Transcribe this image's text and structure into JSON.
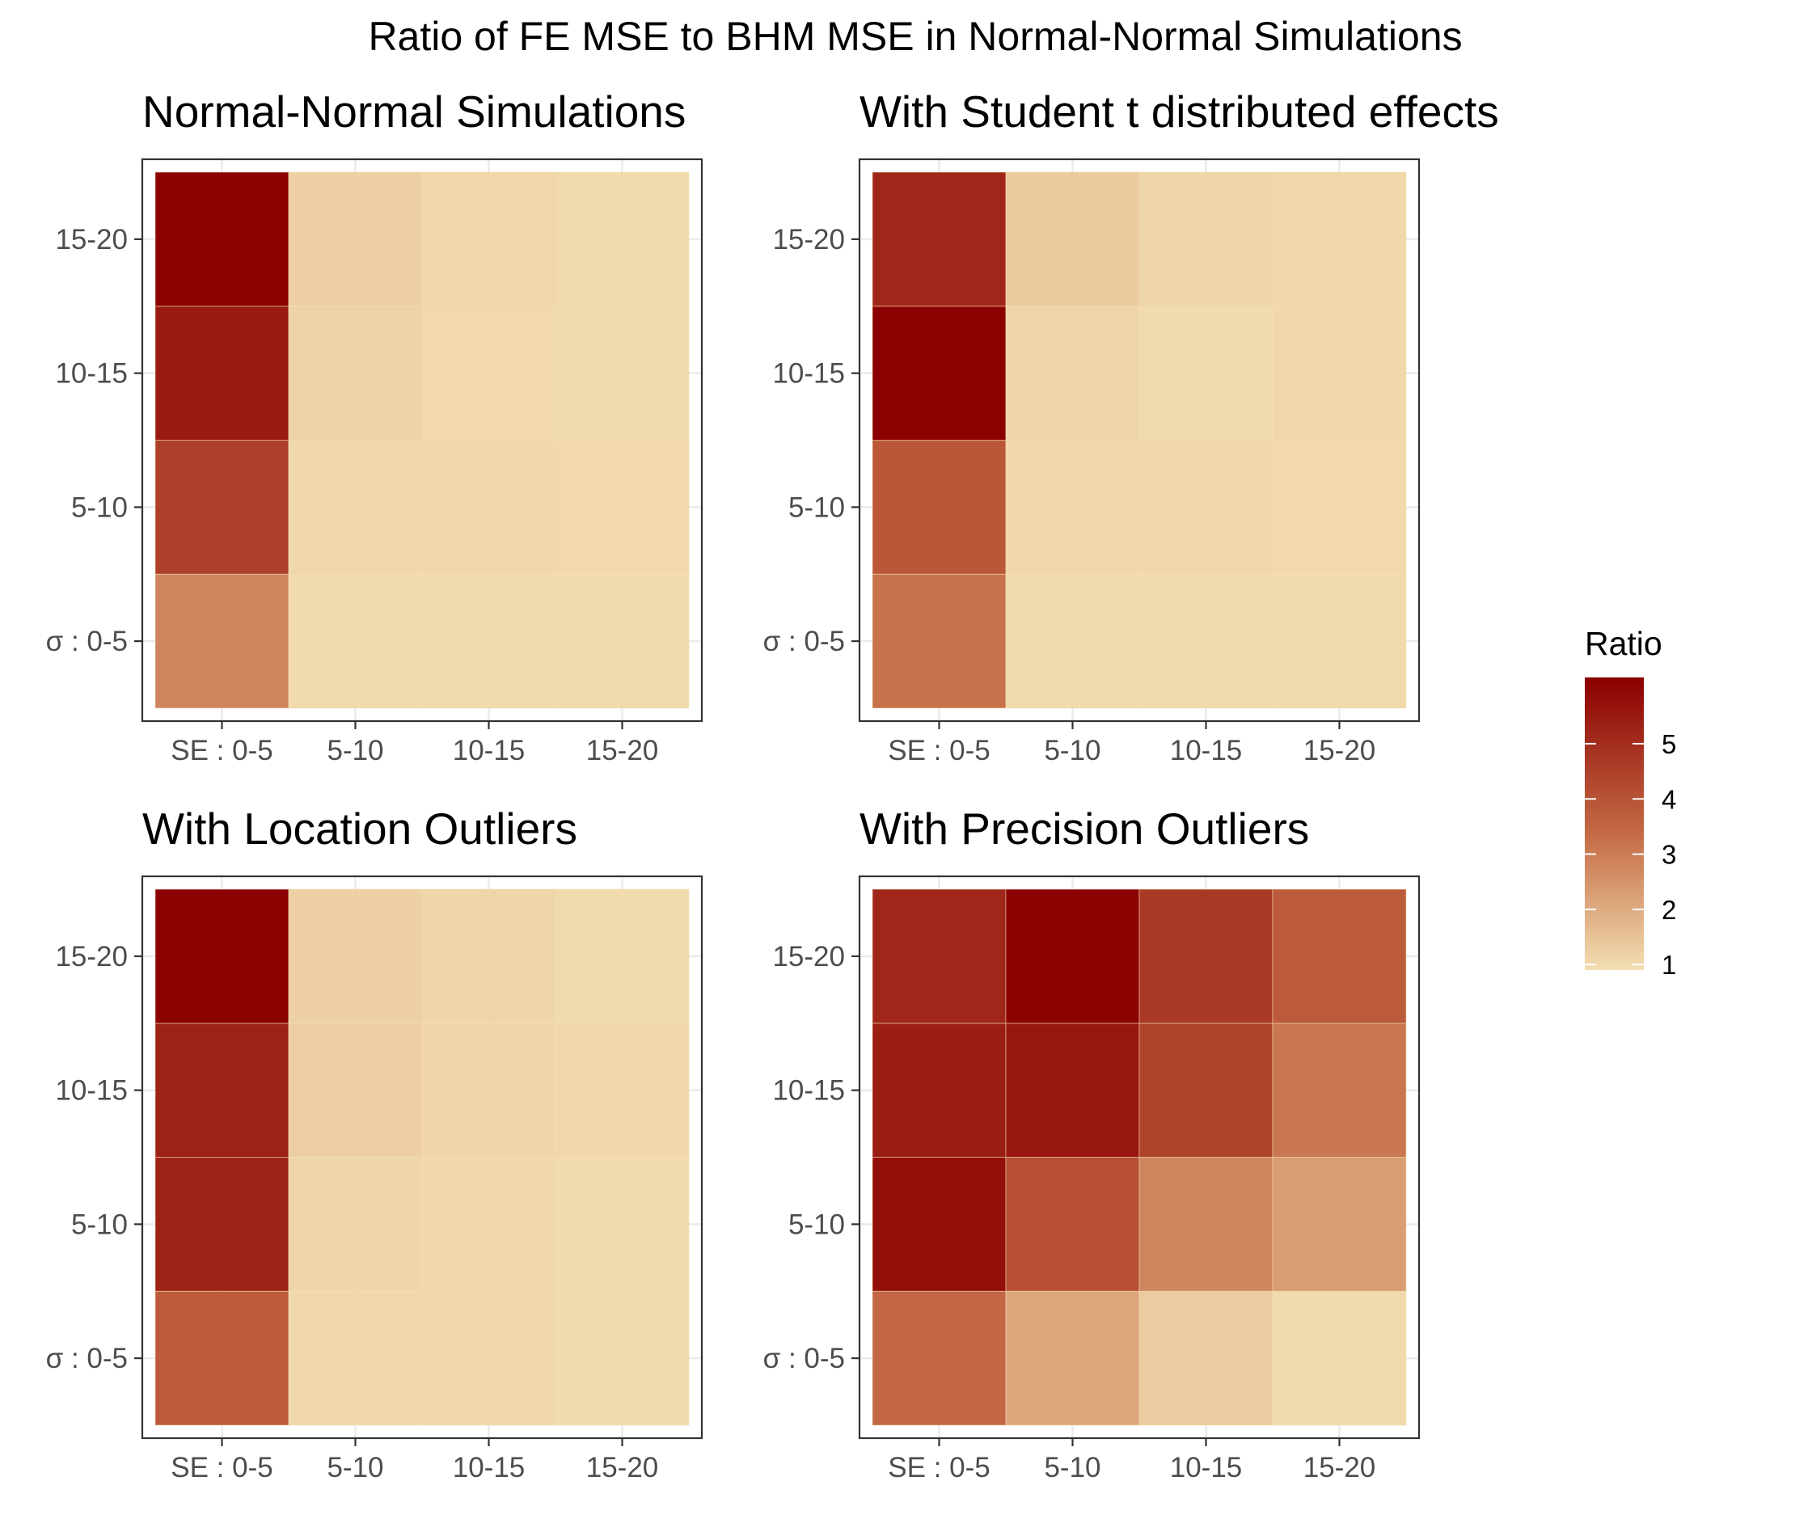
{
  "chart_data": {
    "type": "heatmap",
    "title": "Ratio of FE MSE to BHM MSE in Normal-Normal Simulations",
    "x_categories": [
      "SE : 0-5",
      "5-10",
      "10-15",
      "15-20"
    ],
    "y_categories": [
      "σ : 0-5",
      "5-10",
      "10-15",
      "15-20"
    ],
    "legend": {
      "title": "Ratio",
      "position": "right",
      "breaks": [
        1,
        2,
        3,
        4,
        5
      ],
      "range": [
        0.9,
        6.2
      ],
      "color_low": "#f3dfb2",
      "color_high": "#8b0000"
    },
    "panels": [
      {
        "title": "Normal-Normal Simulations",
        "values": [
          [
            2.8,
            1.0,
            1.0,
            1.0
          ],
          [
            4.5,
            1.05,
            1.05,
            1.02
          ],
          [
            5.5,
            1.15,
            1.03,
            1.0
          ],
          [
            6.2,
            1.2,
            1.08,
            1.0
          ]
        ]
      },
      {
        "title": "With Student t distributed effects",
        "values": [
          [
            3.2,
            1.0,
            1.0,
            1.0
          ],
          [
            3.9,
            1.05,
            1.05,
            1.02
          ],
          [
            6.2,
            1.1,
            1.0,
            1.05
          ],
          [
            5.2,
            1.35,
            1.1,
            1.05
          ]
        ]
      },
      {
        "title": "With Location Outliers",
        "values": [
          [
            3.8,
            1.05,
            1.05,
            1.0
          ],
          [
            5.3,
            1.1,
            1.05,
            1.0
          ],
          [
            5.3,
            1.25,
            1.1,
            1.05
          ],
          [
            6.2,
            1.2,
            1.1,
            1.0
          ]
        ]
      },
      {
        "title": "With Precision Outliers",
        "values": [
          [
            3.5,
            2.1,
            1.3,
            1.0
          ],
          [
            5.8,
            4.1,
            2.8,
            2.3
          ],
          [
            5.4,
            5.6,
            4.4,
            3.1
          ],
          [
            5.2,
            6.2,
            4.7,
            3.8
          ]
        ]
      }
    ]
  }
}
